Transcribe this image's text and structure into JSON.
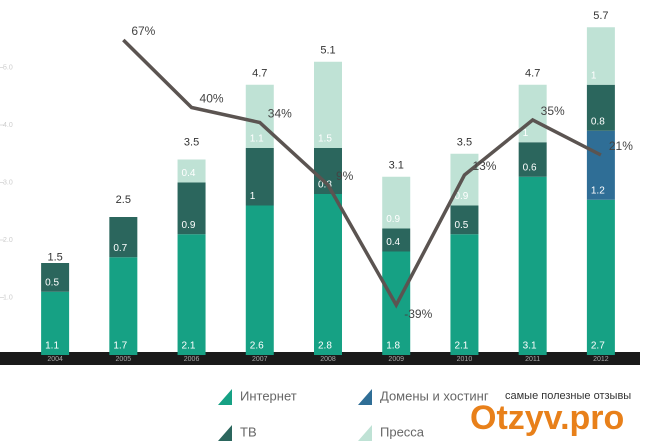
{
  "chart_data": {
    "type": "bar",
    "stacked": true,
    "categories": [
      "2004",
      "2005",
      "2006",
      "2007",
      "2008",
      "2009",
      "2010",
      "2011",
      "2012"
    ],
    "series": [
      {
        "name": "Интернет",
        "color": "#16a184",
        "values": [
          1.1,
          1.7,
          2.1,
          2.6,
          2.8,
          1.8,
          2.1,
          3.1,
          2.7
        ]
      },
      {
        "name": "Домены и хостинг",
        "color": "#2f6e96",
        "values": [
          null,
          null,
          null,
          null,
          null,
          null,
          null,
          null,
          1.2
        ]
      },
      {
        "name": "ТВ",
        "color": "#2b665d",
        "values": [
          0.5,
          0.7,
          0.9,
          1.0,
          0.8,
          0.4,
          0.5,
          0.6,
          0.8
        ]
      },
      {
        "name": "Пресса",
        "color": "#bfe2d5",
        "values": [
          null,
          null,
          0.4,
          1.1,
          1.5,
          0.9,
          0.9,
          1.0,
          1.0
        ]
      },
      {
        "type": "line",
        "axis": "y2",
        "color": "#5b5451",
        "values": [
          null,
          67,
          40,
          34,
          9,
          -39,
          13,
          35,
          21
        ],
        "value_labels": [
          null,
          "67%",
          "40%",
          "34%",
          "9%",
          "-39%",
          "13%",
          "35%",
          "21%"
        ]
      }
    ],
    "totals": [
      1.5,
      2.5,
      3.5,
      4.7,
      5.1,
      3.1,
      3.5,
      4.7,
      5.7
    ],
    "ylim": [
      0,
      6
    ],
    "yticks": [
      {
        "value": 1,
        "label": "1.0"
      },
      {
        "value": 2,
        "label": "2.0"
      },
      {
        "value": 3,
        "label": "3.0"
      },
      {
        "value": 4,
        "label": "4.0"
      },
      {
        "value": 5,
        "label": "5.0"
      }
    ],
    "y2lim": [
      -59,
      79
    ]
  },
  "watermark": {
    "tagline": "самые полезные отзывы",
    "brand": "Otzyv.pro"
  }
}
